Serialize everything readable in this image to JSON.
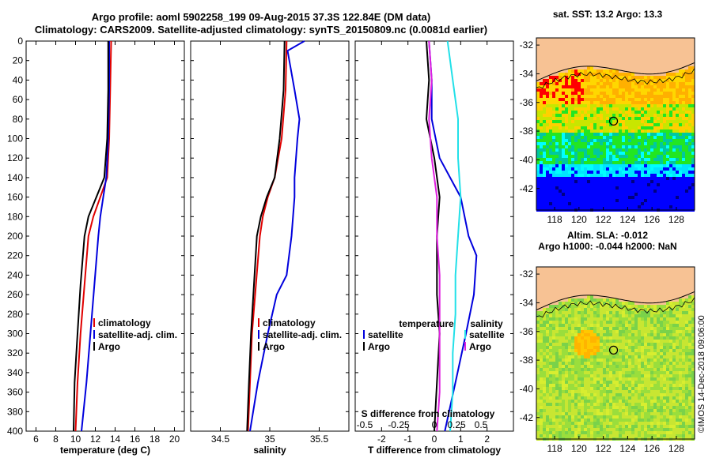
{
  "header": {
    "line1": "Argo profile: aoml 5902258_199 09-Aug-2015 37.3S 122.84E (DM data)",
    "line2": "Climatology: CARS2009. Satellite-adjusted climatology: synTS_20150809.nc (0.0081d earlier)"
  },
  "colors": {
    "climatology": "#e00000",
    "satellite": "#0000dd",
    "argo": "#000000",
    "satellite_salinity": "#22e0e8",
    "argo_salinity": "#e020e0",
    "land": "#f7c294"
  },
  "chart_data": [
    {
      "type": "line",
      "id": "temperature",
      "xlabel": "temperature (deg C)",
      "ylabel": "",
      "xlim": [
        5,
        21
      ],
      "ylim": [
        400,
        0
      ],
      "xticks": [
        "6",
        "8",
        "10",
        "12",
        "14",
        "16",
        "18",
        "20"
      ],
      "yticks": [
        "0",
        "20",
        "40",
        "60",
        "80",
        "100",
        "120",
        "140",
        "160",
        "180",
        "200",
        "220",
        "240",
        "260",
        "280",
        "300",
        "320",
        "340",
        "360",
        "380",
        "400"
      ],
      "series": [
        {
          "name": "climatology",
          "color": "#e00000",
          "depth": [
            0,
            50,
            100,
            140,
            160,
            180,
            200,
            250,
            300,
            350,
            400
          ],
          "values": [
            13.6,
            13.5,
            13.4,
            13.2,
            12.5,
            11.8,
            11.3,
            10.9,
            10.5,
            10.2,
            10.0
          ]
        },
        {
          "name": "satellite-adj. clim.",
          "color": "#0000dd",
          "depth": [
            0,
            50,
            100,
            140,
            160,
            180,
            200,
            250,
            300,
            350,
            400
          ],
          "values": [
            13.4,
            13.4,
            13.3,
            13.1,
            12.8,
            12.5,
            12.3,
            11.9,
            11.5,
            11.1,
            10.6
          ]
        },
        {
          "name": "Argo",
          "color": "#000000",
          "depth": [
            0,
            50,
            100,
            140,
            160,
            180,
            200,
            250,
            300,
            350,
            400
          ],
          "values": [
            13.3,
            13.3,
            13.2,
            12.9,
            12.1,
            11.3,
            10.9,
            10.5,
            10.2,
            9.9,
            9.8
          ]
        }
      ],
      "legend": [
        "climatology",
        "satellite-adj. clim.",
        "Argo"
      ]
    },
    {
      "type": "line",
      "id": "salinity",
      "xlabel": "salinity",
      "xlim": [
        34.2,
        35.8
      ],
      "ylim": [
        400,
        0
      ],
      "xticks": [
        "34.5",
        "35",
        "35.5"
      ],
      "series": [
        {
          "name": "climatology",
          "color": "#e00000",
          "depth": [
            0,
            50,
            100,
            140,
            160,
            180,
            200,
            250,
            300,
            350,
            400
          ],
          "values": [
            35.17,
            35.16,
            35.12,
            35.05,
            34.98,
            34.93,
            34.9,
            34.86,
            34.82,
            34.8,
            34.78
          ]
        },
        {
          "name": "satellite-adj. clim.",
          "color": "#0000dd",
          "depth": [
            0,
            10,
            50,
            80,
            100,
            140,
            160,
            200,
            240,
            260,
            300,
            350,
            400
          ],
          "values": [
            35.35,
            35.18,
            35.25,
            35.3,
            35.28,
            35.25,
            35.25,
            35.22,
            35.17,
            35.07,
            34.98,
            34.88,
            34.8
          ]
        },
        {
          "name": "Argo",
          "color": "#000000",
          "depth": [
            0,
            50,
            100,
            140,
            160,
            180,
            200,
            250,
            300,
            350,
            400
          ],
          "values": [
            35.15,
            35.14,
            35.1,
            35.05,
            34.97,
            34.91,
            34.87,
            34.84,
            34.81,
            34.79,
            34.77
          ]
        }
      ],
      "legend": [
        "climatology",
        "satellite-adj. clim.",
        "Argo"
      ]
    },
    {
      "type": "line",
      "id": "difference",
      "xlabel": "T difference from climatology",
      "top_label": "S difference from climatology",
      "xlim": [
        -3,
        3
      ],
      "ylim": [
        400,
        0
      ],
      "xticks": [
        "-2",
        "-1",
        "0",
        "1",
        "2"
      ],
      "top_ticks": [
        "-0.5",
        "-0.25",
        "0",
        "0.25",
        "0.5"
      ],
      "series": [
        {
          "name": "temperature satellite",
          "color": "#0000dd",
          "depth": [
            0,
            40,
            80,
            120,
            160,
            200,
            220,
            260,
            300,
            350,
            400
          ],
          "values": [
            -0.2,
            -0.1,
            -0.1,
            0.2,
            1.0,
            1.3,
            1.6,
            1.5,
            1.2,
            0.8,
            0.4
          ]
        },
        {
          "name": "temperature Argo",
          "color": "#000000",
          "depth": [
            0,
            40,
            80,
            120,
            160,
            200,
            220,
            260,
            300,
            350,
            400
          ],
          "values": [
            -0.3,
            -0.2,
            -0.3,
            0.0,
            0.2,
            0.1,
            0.1,
            0.1,
            0.2,
            0.1,
            0.0
          ]
        },
        {
          "name": "salinity satellite",
          "color": "#22e0e8",
          "depth": [
            0,
            40,
            80,
            120,
            160,
            200,
            240,
            280,
            320,
            360,
            400
          ],
          "values": [
            0.5,
            0.7,
            0.9,
            0.9,
            1.0,
            0.9,
            0.8,
            0.8,
            0.7,
            0.7,
            0.6
          ]
        },
        {
          "name": "salinity Argo",
          "color": "#e020e0",
          "depth": [
            0,
            40,
            80,
            120,
            160,
            200,
            240,
            280,
            320,
            360,
            400
          ],
          "values": [
            -0.2,
            -0.1,
            -0.2,
            -0.1,
            0.1,
            0.1,
            0.2,
            0.2,
            0.2,
            0.2,
            0.1
          ]
        }
      ],
      "legend_left_title": "temperature",
      "legend_right_title": "salinity",
      "legend_left": [
        "satellite",
        "Argo"
      ],
      "legend_right": [
        "satellite",
        "Argo"
      ]
    },
    {
      "type": "heatmap",
      "id": "sst_map",
      "title": "sat. SST: 13.2 Argo: 13.3",
      "xticks": [
        "118",
        "120",
        "122",
        "124",
        "126",
        "128"
      ],
      "yticks": [
        "-32",
        "-34",
        "-36",
        "-38",
        "-40",
        "-42"
      ],
      "xlim": [
        116.5,
        129.5
      ],
      "ylim": [
        -43.5,
        -31.5
      ],
      "float_lon": 122.84,
      "float_lat": -37.3
    },
    {
      "type": "heatmap",
      "id": "sla_map",
      "title": "Altim. SLA: -0.012",
      "subtitle": "Argo h1000: -0.044 h2000: NaN",
      "xticks": [
        "118",
        "120",
        "122",
        "124",
        "126",
        "128"
      ],
      "yticks": [
        "-32",
        "-34",
        "-36",
        "-38",
        "-40",
        "-42"
      ],
      "xlim": [
        116.5,
        129.5
      ],
      "ylim": [
        -43.5,
        -31.5
      ],
      "float_lon": 122.84,
      "float_lat": -37.3
    }
  ],
  "credit": "©IMOS 14-Dec-2018 09:06:00"
}
